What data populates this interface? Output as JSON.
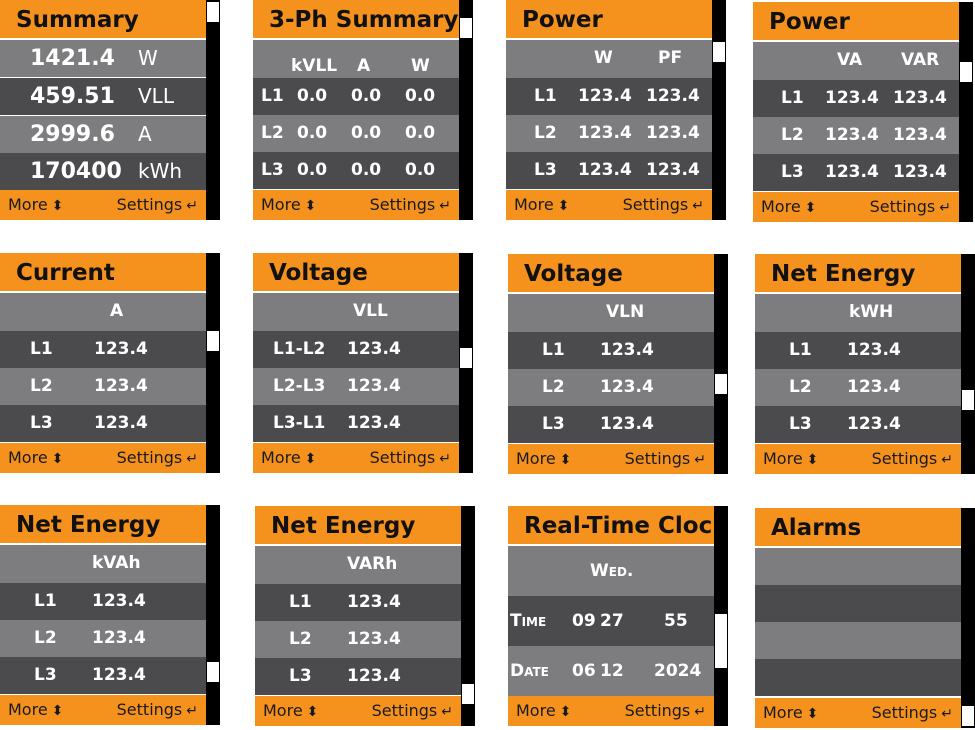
{
  "common": {
    "more_label": "More",
    "settings_label": "Settings",
    "updown_icon": "⬍",
    "enter_icon": "↵"
  },
  "panels": [
    {
      "title": "Summary",
      "rows": [
        [
          "1421.4",
          "W"
        ],
        [
          "459.51",
          "VLL"
        ],
        [
          "2999.6",
          "A"
        ],
        [
          "170400",
          "kWh"
        ]
      ]
    },
    {
      "title": "3-Ph Summary",
      "header": [
        "kVLL",
        "A",
        "W"
      ],
      "rows": [
        [
          "L1",
          "0.0",
          "0.0",
          "0.0"
        ],
        [
          "L2",
          "0.0",
          "0.0",
          "0.0"
        ],
        [
          "L3",
          "0.0",
          "0.0",
          "0.0"
        ]
      ]
    },
    {
      "title": "Power",
      "header": [
        "W",
        "PF"
      ],
      "rows": [
        [
          "L1",
          "123.4",
          "123.4"
        ],
        [
          "L2",
          "123.4",
          "123.4"
        ],
        [
          "L3",
          "123.4",
          "123.4"
        ]
      ]
    },
    {
      "title": "Power",
      "header": [
        "VA",
        "VAR"
      ],
      "rows": [
        [
          "L1",
          "123.4",
          "123.4"
        ],
        [
          "L2",
          "123.4",
          "123.4"
        ],
        [
          "L3",
          "123.4",
          "123.4"
        ]
      ]
    },
    {
      "title": "Current",
      "header": [
        "A"
      ],
      "rows": [
        [
          "L1",
          "123.4"
        ],
        [
          "L2",
          "123.4"
        ],
        [
          "L3",
          "123.4"
        ]
      ]
    },
    {
      "title": "Voltage",
      "header": [
        "VLL"
      ],
      "rows": [
        [
          "L1-L2",
          "123.4"
        ],
        [
          "L2-L3",
          "123.4"
        ],
        [
          "L3-L1",
          "123.4"
        ]
      ]
    },
    {
      "title": "Voltage",
      "header": [
        "VLN"
      ],
      "rows": [
        [
          "L1",
          "123.4"
        ],
        [
          "L2",
          "123.4"
        ],
        [
          "L3",
          "123.4"
        ]
      ]
    },
    {
      "title": "Net Energy",
      "header": [
        "kWH"
      ],
      "rows": [
        [
          "L1",
          "123.4"
        ],
        [
          "L2",
          "123.4"
        ],
        [
          "L3",
          "123.4"
        ]
      ]
    },
    {
      "title": "Net Energy",
      "header": [
        "kVAh"
      ],
      "rows": [
        [
          "L1",
          "123.4"
        ],
        [
          "L2",
          "123.4"
        ],
        [
          "L3",
          "123.4"
        ]
      ]
    },
    {
      "title": "Net Energy",
      "header": [
        "VARh"
      ],
      "rows": [
        [
          "L1",
          "123.4"
        ],
        [
          "L2",
          "123.4"
        ],
        [
          "L3",
          "123.4"
        ]
      ]
    },
    {
      "title": "Real-Time Clock",
      "day": "Wed.",
      "rows": [
        [
          "Time",
          "09",
          "27",
          "55"
        ],
        [
          "Date",
          "06",
          "12",
          "2024"
        ]
      ]
    },
    {
      "title": "Alarms"
    }
  ]
}
